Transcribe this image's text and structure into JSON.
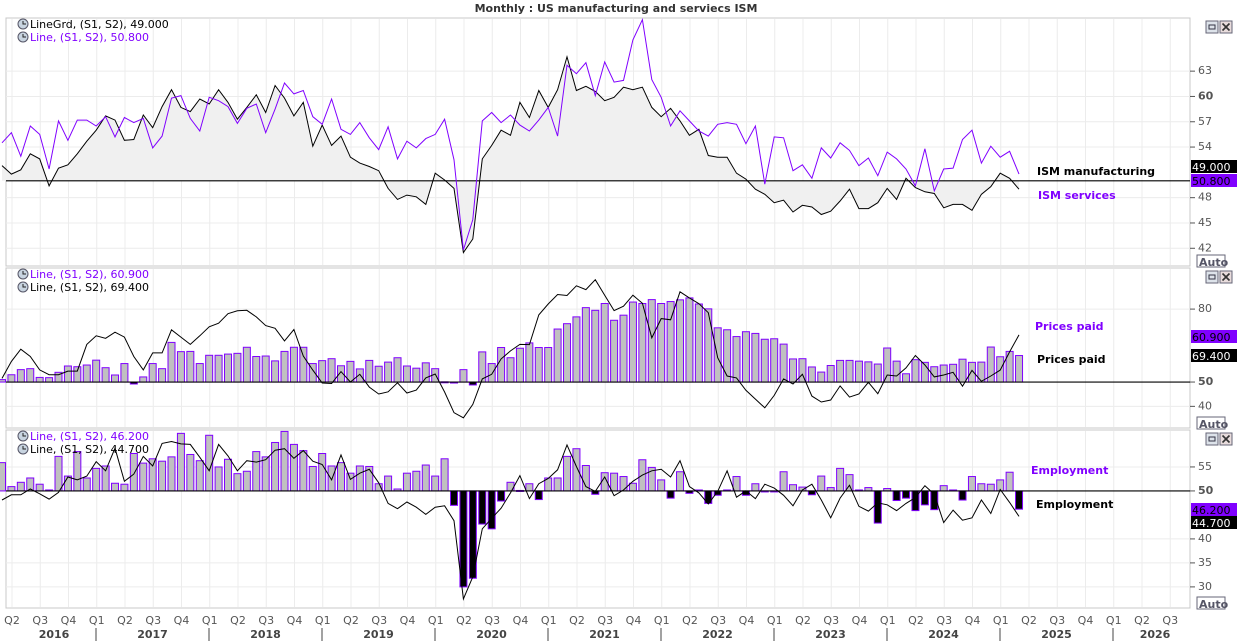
{
  "title": "Monthly : US manufacturing and serviecs ISM",
  "colors": {
    "purple": "#8000ff",
    "black": "#000000",
    "bar_fill": "#c0c0c0",
    "area_fill": "#f0f0f0",
    "grid": "#ececec"
  },
  "buttons": {
    "auto": "Auto",
    "minimize_icon": "window-minimize-icon",
    "close_icon": "window-close-icon"
  },
  "x_axis": {
    "frequency": "monthly",
    "x_range": [
      "2016-03",
      "2025-03"
    ],
    "quarters": [
      "Q2",
      "Q3",
      "Q4",
      "Q1",
      "Q2",
      "Q3",
      "Q4",
      "Q1",
      "Q2",
      "Q3",
      "Q4",
      "Q1",
      "Q2",
      "Q3",
      "Q4",
      "Q1",
      "Q2",
      "Q3",
      "Q4",
      "Q1",
      "Q2",
      "Q3",
      "Q4",
      "Q1",
      "Q2",
      "Q3",
      "Q4",
      "Q1",
      "Q2",
      "Q3",
      "Q4",
      "Q1",
      "Q2",
      "Q3",
      "Q4",
      "Q1",
      "Q2",
      "Q3",
      "Q4",
      "Q1",
      "Q2",
      "Q3"
    ],
    "years": [
      "2016",
      "2017",
      "2018",
      "2019",
      "2020",
      "2021",
      "2022",
      "2023",
      "2024",
      "2025",
      "2026"
    ]
  },
  "chart_data": [
    {
      "type": "line",
      "legend": [
        "LineGrd, (S1, S2), 49.000",
        "Line, (S1, S2), 50.800"
      ],
      "y_ticks": [
        "63",
        "60",
        "57",
        "54",
        "48",
        "45",
        "42"
      ],
      "ylim": [
        39.9,
        69.3
      ],
      "baseline": 50,
      "grid": true,
      "series": [
        {
          "name": "ISM manufacturing",
          "style": "line-with-fill-to-50",
          "color": "#000000",
          "last_value": "49.000",
          "values": [
            51.8,
            50.8,
            51.3,
            53.2,
            52.6,
            49.4,
            51.5,
            51.9,
            53.2,
            54.7,
            56.0,
            57.7,
            57.2,
            54.8,
            54.9,
            57.8,
            56.3,
            58.8,
            60.8,
            58.7,
            58.2,
            59.7,
            59.1,
            60.8,
            59.3,
            57.3,
            58.7,
            60.2,
            58.1,
            61.3,
            59.8,
            57.7,
            59.3,
            54.1,
            56.6,
            54.2,
            55.3,
            52.8,
            52.1,
            51.7,
            51.2,
            49.1,
            47.8,
            48.3,
            48.1,
            47.2,
            50.9,
            50.1,
            49.1,
            41.5,
            43.1,
            52.6,
            54.2,
            56.0,
            55.4,
            59.3,
            57.5,
            60.7,
            58.7,
            60.8,
            64.7,
            60.7,
            61.2,
            60.6,
            59.5,
            59.9,
            61.1,
            60.8,
            61.1,
            58.7,
            57.6,
            58.6,
            57.1,
            55.4,
            56.1,
            53.0,
            52.8,
            52.8,
            50.9,
            50.2,
            49.0,
            48.4,
            47.4,
            47.7,
            46.3,
            47.1,
            46.9,
            46.0,
            46.4,
            47.6,
            49.0,
            46.7,
            46.7,
            47.4,
            49.1,
            47.8,
            50.3,
            49.2,
            48.7,
            48.5,
            46.8,
            47.2,
            47.2,
            46.5,
            48.4,
            49.3,
            50.9,
            50.3,
            49.0
          ]
        },
        {
          "name": "ISM services",
          "style": "line",
          "color": "#8000ff",
          "last_value": "50.800",
          "values": [
            54.5,
            55.7,
            52.9,
            56.5,
            55.5,
            51.4,
            57.1,
            54.8,
            57.2,
            57.2,
            56.5,
            57.6,
            55.2,
            57.5,
            56.9,
            57.4,
            53.9,
            55.3,
            59.8,
            60.1,
            57.4,
            55.9,
            59.9,
            59.5,
            58.8,
            56.8,
            58.6,
            59.1,
            55.7,
            58.5,
            61.6,
            60.3,
            60.7,
            57.6,
            56.7,
            59.7,
            56.1,
            55.5,
            56.9,
            55.1,
            53.7,
            56.4,
            52.6,
            54.7,
            53.9,
            55.0,
            55.5,
            57.3,
            52.5,
            41.8,
            45.4,
            57.1,
            58.1,
            56.9,
            57.8,
            56.6,
            55.9,
            57.2,
            58.7,
            55.3,
            63.7,
            62.7,
            64.0,
            60.1,
            64.1,
            61.7,
            61.9,
            66.7,
            69.1,
            62.0,
            59.9,
            56.5,
            58.3,
            57.1,
            55.9,
            55.3,
            56.7,
            56.9,
            56.7,
            54.4,
            56.5,
            49.6,
            55.2,
            55.1,
            51.2,
            51.9,
            50.3,
            53.9,
            52.7,
            54.5,
            53.6,
            51.8,
            52.7,
            50.6,
            53.4,
            52.6,
            51.4,
            49.4,
            53.8,
            48.8,
            51.4,
            51.5,
            54.9,
            56.0,
            52.1,
            54.1,
            52.8,
            53.5,
            50.8
          ]
        }
      ]
    },
    {
      "type": "bar",
      "legend": [
        "Line, (S1, S2), 60.900",
        "Line, (S1, S2), 69.400"
      ],
      "y_ticks": [
        "80",
        "50",
        "40"
      ],
      "ylim": [
        31.1,
        96.9
      ],
      "baseline": 50,
      "grid": true,
      "series": [
        {
          "name": "Prices paid",
          "style": "bars-from-50",
          "color": "#8000ff",
          "last_value": "60.900",
          "values": [
            51.0,
            53.0,
            55.1,
            55.5,
            51.9,
            51.8,
            54.0,
            56.6,
            56.3,
            57.0,
            59.0,
            55.9,
            52.9,
            57.6,
            49.2,
            52.1,
            57.6,
            55.5,
            66.3,
            62.5,
            62.6,
            57.6,
            61.0,
            61.0,
            61.5,
            61.8,
            64.3,
            60.5,
            60.7,
            58.7,
            62.6,
            64.3,
            64.3,
            57.6,
            58.8,
            59.6,
            56.7,
            58.5,
            55.4,
            58.9,
            56.5,
            58.2,
            60.0,
            56.6,
            55.7,
            57.9,
            55.5,
            50.1,
            50.0,
            55.1,
            48.8,
            62.4,
            57.6,
            64.2,
            60.0,
            63.9,
            66.1,
            64.2,
            64.2,
            71.8,
            74.0,
            76.8,
            80.6,
            79.5,
            82.3,
            75.4,
            77.5,
            82.9,
            82.3,
            83.9,
            82.3,
            83.1,
            83.8,
            84.6,
            82.1,
            80.1,
            72.3,
            71.5,
            68.7,
            70.7,
            70.0,
            67.6,
            67.8,
            65.6,
            59.5,
            59.6,
            56.2,
            54.1,
            56.8,
            58.9,
            58.9,
            58.6,
            58.3,
            57.4,
            64.0,
            58.6,
            53.4,
            59.2,
            58.1,
            56.3,
            57.0,
            57.3,
            59.4,
            58.1,
            58.2,
            64.4,
            60.4,
            62.6,
            60.9
          ]
        },
        {
          "name": "Prices paid",
          "style": "line",
          "color": "#000000",
          "last_value": "69.400",
          "values": [
            51.5,
            58.5,
            63.5,
            60.5,
            55.0,
            53.0,
            53.0,
            54.5,
            54.5,
            65.5,
            69.0,
            68.0,
            70.5,
            68.5,
            60.5,
            55.0,
            62.0,
            62.0,
            71.5,
            68.5,
            65.5,
            69.0,
            72.7,
            74.2,
            78.1,
            79.3,
            79.5,
            76.8,
            73.2,
            72.1,
            66.9,
            71.6,
            60.7,
            54.9,
            49.6,
            49.4,
            54.3,
            50.0,
            53.2,
            47.9,
            45.1,
            46.0,
            49.7,
            45.5,
            46.7,
            51.7,
            53.3,
            45.9,
            37.4,
            35.3,
            40.8,
            51.3,
            53.2,
            59.5,
            62.8,
            65.5,
            65.4,
            77.6,
            82.1,
            86.0,
            85.6,
            89.6,
            88.0,
            92.1,
            85.7,
            79.4,
            81.2,
            85.7,
            82.4,
            68.2,
            76.1,
            75.6,
            87.1,
            84.6,
            82.2,
            78.5,
            60.0,
            52.5,
            51.7,
            46.6,
            43.0,
            39.4,
            44.5,
            51.3,
            49.2,
            53.2,
            44.2,
            41.8,
            42.6,
            48.4,
            43.8,
            45.1,
            49.9,
            45.2,
            52.9,
            52.5,
            55.8,
            60.9,
            57.0,
            52.1,
            52.9,
            54.0,
            48.3,
            54.8,
            50.3,
            52.5,
            54.9,
            62.4,
            69.4
          ]
        }
      ]
    },
    {
      "type": "bar",
      "legend": [
        "Line, (S1, S2), 46.200",
        "Line, (S1, S2), 44.700"
      ],
      "y_ticks": [
        "55",
        "50",
        "40",
        "35",
        "30"
      ],
      "ylim": [
        25.6,
        62.7
      ],
      "baseline": 50,
      "grid": true,
      "series": [
        {
          "name": "Employment",
          "style": "bars-from-50",
          "color": "#8000ff",
          "last_value": "46.200",
          "values": [
            55.9,
            50.9,
            51.8,
            52.7,
            51.4,
            50.2,
            57.2,
            53.1,
            58.2,
            52.7,
            54.7,
            55.2,
            51.6,
            51.4,
            57.8,
            55.8,
            56.7,
            56.2,
            57.1,
            62.0,
            57.6,
            56.3,
            61.6,
            55.0,
            56.6,
            53.6,
            54.1,
            58.2,
            57.1,
            60.1,
            62.4,
            59.7,
            58.4,
            55.1,
            57.8,
            55.2,
            55.9,
            53.7,
            55.2,
            55.1,
            51.5,
            53.1,
            50.4,
            53.7,
            54.1,
            55.4,
            53.1,
            56.7,
            47.0,
            30.0,
            31.8,
            43.1,
            42.1,
            47.9,
            51.8,
            50.1,
            51.5,
            48.2,
            52.7,
            52.7,
            57.2,
            58.8,
            55.3,
            49.3,
            53.8,
            53.7,
            53.0,
            51.6,
            56.5,
            54.9,
            52.3,
            48.5,
            54.0,
            49.5,
            50.2,
            47.4,
            49.1,
            50.2,
            53.0,
            49.1,
            51.5,
            49.8,
            50.0,
            54.0,
            51.3,
            50.8,
            49.2,
            53.1,
            50.7,
            54.7,
            53.4,
            50.2,
            50.7,
            43.3,
            50.5,
            48.0,
            48.5,
            45.9,
            47.1,
            46.1,
            51.1,
            50.2,
            48.1,
            53.0,
            51.5,
            51.4,
            52.3,
            53.9,
            46.2
          ]
        },
        {
          "name": "Employment",
          "style": "line",
          "color": "#000000",
          "last_value": "44.700",
          "values": [
            48.1,
            49.2,
            49.2,
            50.4,
            49.4,
            48.3,
            49.7,
            52.9,
            52.3,
            53.1,
            56.1,
            54.2,
            58.9,
            52.0,
            53.5,
            57.2,
            55.2,
            59.9,
            60.3,
            59.8,
            59.7,
            57.0,
            54.2,
            59.7,
            57.3,
            54.2,
            56.3,
            56.0,
            56.5,
            58.5,
            58.8,
            56.8,
            58.4,
            56.2,
            55.5,
            52.3,
            57.5,
            52.4,
            53.7,
            54.5,
            51.7,
            47.4,
            46.3,
            47.7,
            46.6,
            45.1,
            46.6,
            46.9,
            43.8,
            27.5,
            32.1,
            42.1,
            44.3,
            46.4,
            49.6,
            53.2,
            48.4,
            51.5,
            52.6,
            54.4,
            59.6,
            55.1,
            50.9,
            49.9,
            52.9,
            49.0,
            50.2,
            52.0,
            53.3,
            54.2,
            54.5,
            52.9,
            56.3,
            50.9,
            49.6,
            47.3,
            49.9,
            54.2,
            48.7,
            50.0,
            48.4,
            51.4,
            50.6,
            49.1,
            46.9,
            50.2,
            51.4,
            48.1,
            44.4,
            48.5,
            51.2,
            46.8,
            45.8,
            47.5,
            47.1,
            45.9,
            47.4,
            48.6,
            51.1,
            49.3,
            43.4,
            46.0,
            43.9,
            44.4,
            48.1,
            45.3,
            50.3,
            47.6,
            44.7
          ]
        }
      ]
    }
  ]
}
